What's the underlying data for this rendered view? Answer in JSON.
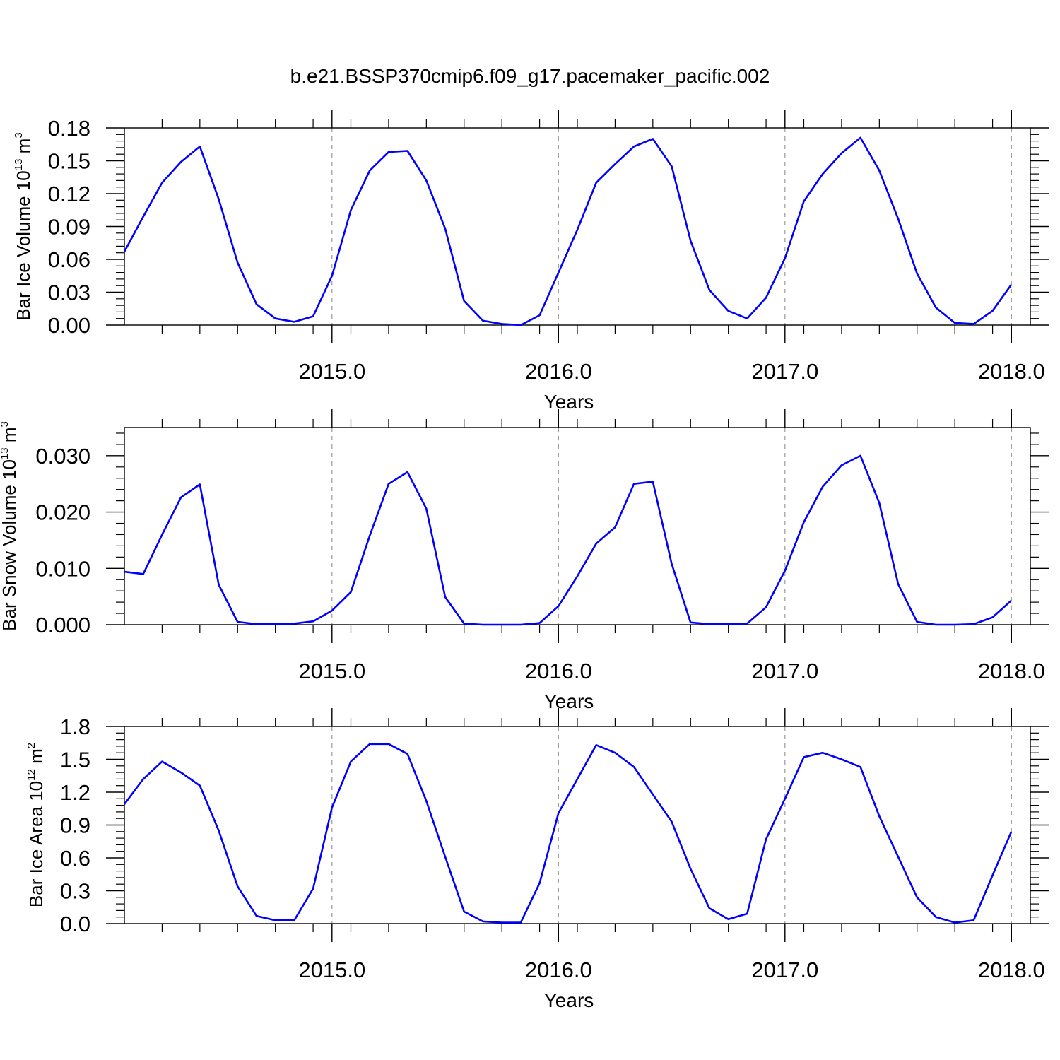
{
  "title": "b.e21.BSSP370cmip6.f09_g17.pacemaker_pacific.002",
  "chart_data": [
    {
      "type": "line",
      "ylabel": {
        "base": "Bar Ice Volume 10",
        "exp1": "13",
        "unit": " m",
        "exp2": "3"
      },
      "xlabel": "Years",
      "color": "#0000ff",
      "xlim": [
        2014.0833,
        2018.0833
      ],
      "ylim": [
        0,
        0.18
      ],
      "yticks": [
        0.0,
        0.03,
        0.06,
        0.09,
        0.12,
        0.15,
        0.18
      ],
      "ytick_labels": [
        "0.00",
        "0.03",
        "0.06",
        "0.09",
        "0.12",
        "0.15",
        "0.18"
      ],
      "xticks": [
        2015.0,
        2016.0,
        2017.0,
        2018.0
      ],
      "xtick_labels": [
        "2015.0",
        "2016.0",
        "2017.0",
        "2018.0"
      ],
      "x_start": 2014.0833,
      "x_step": 0.08333,
      "values": [
        0.067,
        0.099,
        0.13,
        0.149,
        0.163,
        0.115,
        0.057,
        0.019,
        0.006,
        0.003,
        0.008,
        0.045,
        0.105,
        0.141,
        0.158,
        0.159,
        0.132,
        0.088,
        0.022,
        0.004,
        0.001,
        0.0,
        0.009,
        0.048,
        0.087,
        0.13,
        0.147,
        0.163,
        0.17,
        0.145,
        0.077,
        0.032,
        0.013,
        0.006,
        0.025,
        0.061,
        0.113,
        0.138,
        0.157,
        0.171,
        0.141,
        0.097,
        0.047,
        0.016,
        0.002,
        0.001,
        0.013,
        0.037
      ]
    },
    {
      "type": "line",
      "ylabel": {
        "base": "Bar Snow Volume 10",
        "exp1": "13",
        "unit": " m",
        "exp2": "3"
      },
      "xlabel": "Years",
      "color": "#0000ff",
      "xlim": [
        2014.0833,
        2018.0833
      ],
      "ylim": [
        0,
        0.035
      ],
      "yticks": [
        0.0,
        0.01,
        0.02,
        0.03
      ],
      "ytick_labels": [
        "0.000",
        "0.010",
        "0.020",
        "0.030"
      ],
      "xticks": [
        2015.0,
        2016.0,
        2017.0,
        2018.0
      ],
      "xtick_labels": [
        "2015.0",
        "2016.0",
        "2017.0",
        "2018.0"
      ],
      "x_start": 2014.0833,
      "x_step": 0.08333,
      "values": [
        0.0094,
        0.009,
        0.016,
        0.0226,
        0.0249,
        0.0071,
        0.0005,
        0.0001,
        0.0001,
        0.0002,
        0.0006,
        0.0025,
        0.0058,
        0.0158,
        0.025,
        0.0271,
        0.0206,
        0.0049,
        0.0002,
        0.0,
        0.0,
        0.0,
        0.0003,
        0.0033,
        0.0086,
        0.0144,
        0.0173,
        0.025,
        0.0254,
        0.0108,
        0.0004,
        0.0001,
        0.0001,
        0.0002,
        0.0031,
        0.0096,
        0.0182,
        0.0245,
        0.0283,
        0.03,
        0.0216,
        0.0072,
        0.0005,
        0.0,
        0.0,
        0.0001,
        0.0013,
        0.0043
      ]
    },
    {
      "type": "line",
      "ylabel": {
        "base": "Bar Ice Area 10",
        "exp1": "12",
        "unit": " m",
        "exp2": "2"
      },
      "xlabel": "Years",
      "color": "#0000ff",
      "xlim": [
        2014.0833,
        2018.0833
      ],
      "ylim": [
        0,
        1.8
      ],
      "yticks": [
        0.0,
        0.3,
        0.6,
        0.9,
        1.2,
        1.5,
        1.8
      ],
      "ytick_labels": [
        "0.0",
        "0.3",
        "0.6",
        "0.9",
        "1.2",
        "1.5",
        "1.8"
      ],
      "xticks": [
        2015.0,
        2016.0,
        2017.0,
        2018.0
      ],
      "xtick_labels": [
        "2015.0",
        "2016.0",
        "2017.0",
        "2018.0"
      ],
      "x_start": 2014.0833,
      "x_step": 0.08333,
      "values": [
        1.09,
        1.32,
        1.48,
        1.38,
        1.26,
        0.85,
        0.34,
        0.07,
        0.03,
        0.03,
        0.32,
        1.06,
        1.48,
        1.64,
        1.64,
        1.55,
        1.12,
        0.61,
        0.11,
        0.02,
        0.01,
        0.01,
        0.37,
        1.01,
        1.32,
        1.63,
        1.56,
        1.43,
        1.18,
        0.93,
        0.5,
        0.14,
        0.04,
        0.09,
        0.77,
        1.14,
        1.52,
        1.56,
        1.5,
        1.43,
        0.98,
        0.61,
        0.24,
        0.06,
        0.01,
        0.03,
        0.44,
        0.84
      ]
    }
  ]
}
